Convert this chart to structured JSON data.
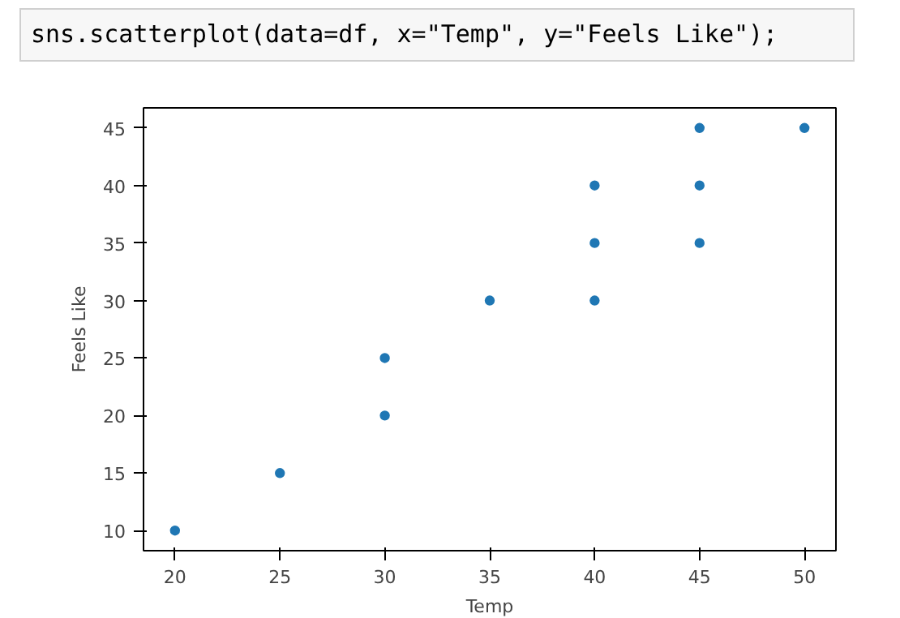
{
  "chart_data": {
    "type": "scatter",
    "xlabel": "Temp",
    "ylabel": "Feels Like",
    "annotations": [
      "sns.scatterplot(data=df, x=\"Temp\", y=\"Feels Like\");"
    ],
    "x": [
      20,
      25,
      30,
      30,
      35,
      40,
      40,
      40,
      45,
      45,
      45,
      50
    ],
    "series": [
      {
        "color": "#1f77b4",
        "values": [
          10,
          15,
          20,
          25,
          30,
          30,
          35,
          40,
          35,
          40,
          45,
          45
        ]
      }
    ],
    "xlim": [
      18.5,
      51.5
    ],
    "ylim": [
      8.25,
      46.75
    ],
    "xticks": [
      20,
      25,
      30,
      35,
      40,
      45,
      50
    ],
    "yticks": [
      10,
      15,
      20,
      25,
      30,
      35,
      40,
      45
    ],
    "grid": false,
    "marker": "circle"
  }
}
